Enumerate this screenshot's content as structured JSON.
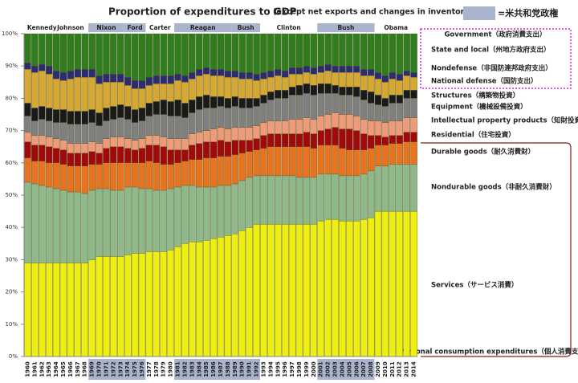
{
  "chart_data": {
    "type": "stacked-bar",
    "title": "Proportion of expenditures to GDP",
    "subtitle": "(except net exports and changes in inventories)",
    "republican_legend": "=米共和党政権",
    "republican_color": "#aab4cc",
    "categories": [
      "1960",
      "1961",
      "1962",
      "1963",
      "1964",
      "1965",
      "1966",
      "1967",
      "1968",
      "1969",
      "1970",
      "1971",
      "1972",
      "1973",
      "1974",
      "1975",
      "1976",
      "1977",
      "1978",
      "1979",
      "1980",
      "1981",
      "1982",
      "1983",
      "1984",
      "1985",
      "1986",
      "1987",
      "1988",
      "1989",
      "1990",
      "1991",
      "1992",
      "1993",
      "1994",
      "1995",
      "1996",
      "1997",
      "1998",
      "1999",
      "2000",
      "2001",
      "2002",
      "2003",
      "2004",
      "2005",
      "2006",
      "2007",
      "2008",
      "2009",
      "2010",
      "2011",
      "2012",
      "2013",
      "2014"
    ],
    "presidents": [
      {
        "name": "Kennedy",
        "start": 1961,
        "end": 1963,
        "republican": false
      },
      {
        "name": "Johnson",
        "start": 1964,
        "end": 1968,
        "republican": false
      },
      {
        "name": "Nixon",
        "start": 1969,
        "end": 1973,
        "republican": true
      },
      {
        "name": "Ford",
        "start": 1974,
        "end": 1976,
        "republican": true
      },
      {
        "name": "Carter",
        "start": 1977,
        "end": 1980,
        "republican": false
      },
      {
        "name": "Reagan",
        "start": 1981,
        "end": 1988,
        "republican": true
      },
      {
        "name": "Bush",
        "start": 1989,
        "end": 1992,
        "republican": true
      },
      {
        "name": "Clinton",
        "start": 1993,
        "end": 2000,
        "republican": false
      },
      {
        "name": "Bush",
        "start": 2001,
        "end": 2008,
        "republican": true
      },
      {
        "name": "Obama",
        "start": 2009,
        "end": 2014,
        "republican": false
      }
    ],
    "groups": [
      {
        "name": "Government（政府消費支出）"
      },
      {
        "name": "Personal consumption expenditures（個人消費支出）"
      }
    ],
    "ylim": [
      0,
      100
    ],
    "yticks": [
      {
        "value": 0,
        "label": "0%"
      },
      {
        "value": 10,
        "label": "10%"
      },
      {
        "value": 20,
        "label": "20%"
      },
      {
        "value": 30,
        "label": "30%"
      },
      {
        "value": 40,
        "label": "40%"
      },
      {
        "value": 50,
        "label": "50%"
      },
      {
        "value": 60,
        "label": "60%"
      },
      {
        "value": 70,
        "label": "70%"
      },
      {
        "value": 80,
        "label": "80%"
      },
      {
        "value": 90,
        "label": "90%"
      },
      {
        "value": 100,
        "label": "100%"
      }
    ],
    "series": [
      {
        "name": "Services（サービス消費）",
        "color": "#eeee10",
        "values": [
          29,
          29,
          29,
          29,
          29,
          29,
          29,
          29,
          29,
          30,
          31,
          31,
          31,
          31,
          31.5,
          32,
          32,
          32.5,
          32.5,
          32.5,
          33,
          34,
          35,
          35.5,
          35.5,
          36,
          36.5,
          37,
          37.5,
          38,
          39,
          40,
          41,
          41,
          41,
          41,
          41,
          41,
          41,
          41,
          41,
          42,
          42.5,
          42.5,
          42,
          42,
          42,
          42.5,
          43,
          45,
          45,
          45,
          45,
          45,
          45
        ]
      },
      {
        "name": "Nondurable goods（非耐久消費財）",
        "color": "#8fb98a",
        "values": [
          25,
          24.5,
          24,
          23.5,
          23,
          22.5,
          22,
          22,
          21.5,
          21.5,
          21,
          21,
          20.5,
          20.5,
          21,
          20.5,
          20,
          19.5,
          19,
          19,
          19,
          18.5,
          18,
          17.5,
          17,
          16.5,
          16,
          16,
          15.5,
          15.5,
          15.5,
          15.5,
          15,
          15,
          15,
          15,
          15,
          15,
          14.5,
          14.5,
          14.5,
          14.5,
          14,
          14,
          14,
          14,
          14,
          14,
          14.5,
          14,
          14,
          14.5,
          14.5,
          14.5,
          14.5
        ]
      },
      {
        "name": "Durable goods（耐久消費財）",
        "color": "#e8731e",
        "values": [
          7.5,
          7,
          7.5,
          7.5,
          8,
          8,
          8,
          8,
          8.5,
          8,
          7.5,
          8,
          8.5,
          8.5,
          7.5,
          7.5,
          8,
          8.5,
          8.5,
          8,
          7.5,
          7.5,
          7.5,
          8,
          8.5,
          9,
          9,
          9,
          9,
          9,
          8.5,
          8,
          8,
          8.5,
          9,
          9,
          9,
          9,
          9.5,
          9.5,
          9,
          9,
          9,
          9,
          8.5,
          8,
          8,
          7.5,
          7,
          6.5,
          6.5,
          6.5,
          6.5,
          7,
          7
        ]
      },
      {
        "name": "Residential（住宅投資）",
        "color": "#a00a0a",
        "values": [
          5,
          5,
          5,
          5,
          4.5,
          4.5,
          4,
          4,
          4,
          4,
          3.5,
          4.5,
          5,
          5,
          4.5,
          4,
          4.5,
          5,
          5.5,
          5.5,
          4.5,
          4,
          3.5,
          4.5,
          5,
          5,
          5,
          5,
          4.5,
          4.5,
          4,
          3.5,
          3.5,
          4,
          4,
          4,
          4,
          4,
          4,
          4.5,
          4.5,
          4.5,
          5,
          5.5,
          6,
          6.5,
          6,
          5,
          4,
          3,
          2.5,
          2.5,
          2.5,
          3,
          3
        ]
      },
      {
        "name": "Intellectual property products（知財投資）",
        "color": "#ef9a78",
        "values": [
          3,
          3,
          3,
          3,
          3,
          3,
          3,
          3,
          3,
          3,
          3,
          3,
          3,
          3,
          3,
          3,
          3,
          3,
          3,
          3,
          3.5,
          3.5,
          3.5,
          3.5,
          3.5,
          3.5,
          4,
          4,
          4,
          4,
          4,
          4,
          4,
          4,
          4,
          4,
          4,
          4.5,
          4.5,
          4.5,
          4.5,
          4.5,
          4.5,
          4.5,
          4.5,
          4.5,
          4.5,
          4.5,
          4.5,
          4.5,
          4.5,
          4.5,
          4.5,
          4.5,
          4.5
        ]
      },
      {
        "name": "Equipment（機械設備投資）",
        "color": "#7f7f7f",
        "values": [
          5,
          4.5,
          5,
          5,
          5,
          5.5,
          6,
          6,
          6,
          6,
          5.5,
          5.5,
          5.5,
          6,
          6,
          5.5,
          5.5,
          6,
          6.5,
          7,
          7,
          7,
          6.5,
          6.5,
          7,
          7,
          6.5,
          6.5,
          6.5,
          6.5,
          6,
          6,
          6,
          6,
          6.5,
          7,
          7,
          7.5,
          7.5,
          7.5,
          7.5,
          7,
          6.5,
          6,
          6,
          6,
          6,
          6,
          5.5,
          5,
          5,
          5.5,
          5.5,
          6,
          6
        ]
      },
      {
        "name": "Structures（構築物投資）",
        "color": "#1a1a1a",
        "values": [
          4,
          4,
          4,
          4,
          4,
          4,
          4,
          4,
          4,
          4,
          4,
          4,
          4,
          4,
          4,
          4,
          4,
          4,
          4,
          4.5,
          4.5,
          5,
          4.5,
          4,
          4,
          4,
          3.5,
          3,
          3,
          3,
          3,
          3,
          2.5,
          2.5,
          2.5,
          2.5,
          2.5,
          2.5,
          3,
          3,
          3,
          3,
          3,
          2.5,
          2.5,
          2.5,
          3,
          3,
          3.5,
          3,
          2.5,
          2.5,
          2.5,
          2.5,
          2.5
        ]
      },
      {
        "name": "National defense（国防支出）",
        "color": "#d6a832",
        "values": [
          10.5,
          11,
          11,
          10.5,
          9.5,
          9,
          10,
          10.5,
          10.5,
          10,
          9,
          8,
          7.5,
          7,
          6.5,
          6.5,
          6,
          5.5,
          5.5,
          5,
          5.5,
          6,
          6.5,
          6.5,
          6.5,
          6.5,
          6.5,
          6.5,
          6.5,
          6,
          6,
          6,
          5.5,
          5,
          4.5,
          4.5,
          4,
          4,
          3.5,
          3.5,
          3.5,
          3.5,
          4,
          4,
          4.5,
          4.5,
          4.5,
          4.5,
          5,
          5,
          5,
          5,
          4.5,
          4.5,
          4
        ]
      },
      {
        "name": "Nondefense（非国防連邦政府支出）",
        "color": "#2c2c6e",
        "values": [
          2,
          2,
          2,
          2.5,
          2.5,
          2.5,
          2.5,
          2.5,
          2.5,
          2.5,
          2.5,
          2.5,
          2.5,
          2.5,
          2.5,
          2.5,
          2.5,
          2.5,
          2.5,
          2.5,
          2.5,
          2,
          2,
          2,
          2,
          2,
          2,
          2,
          2,
          2,
          2,
          2,
          2,
          2,
          2,
          2,
          2,
          2,
          2,
          2,
          2,
          2,
          2,
          2,
          2,
          2,
          2,
          2,
          2,
          2,
          2,
          2,
          2,
          1.5,
          1.5
        ]
      },
      {
        "name": "State and local（州地方政府支出）",
        "color": "#2f7d1f",
        "values": [
          9,
          10,
          9.5,
          10,
          11.5,
          12,
          11.5,
          11,
          11,
          11,
          13,
          12.5,
          12.5,
          12.5,
          13.5,
          14.5,
          14.5,
          13.5,
          13,
          13,
          13,
          12.5,
          13,
          12,
          11,
          10.5,
          11,
          11,
          11.5,
          11.5,
          12,
          12,
          12.5,
          12,
          11.5,
          11,
          11.5,
          10.5,
          10.5,
          10,
          10.5,
          10,
          9.5,
          10,
          10,
          10,
          10,
          11,
          11,
          12,
          13,
          12,
          12.5,
          11.5,
          12
        ]
      }
    ]
  }
}
